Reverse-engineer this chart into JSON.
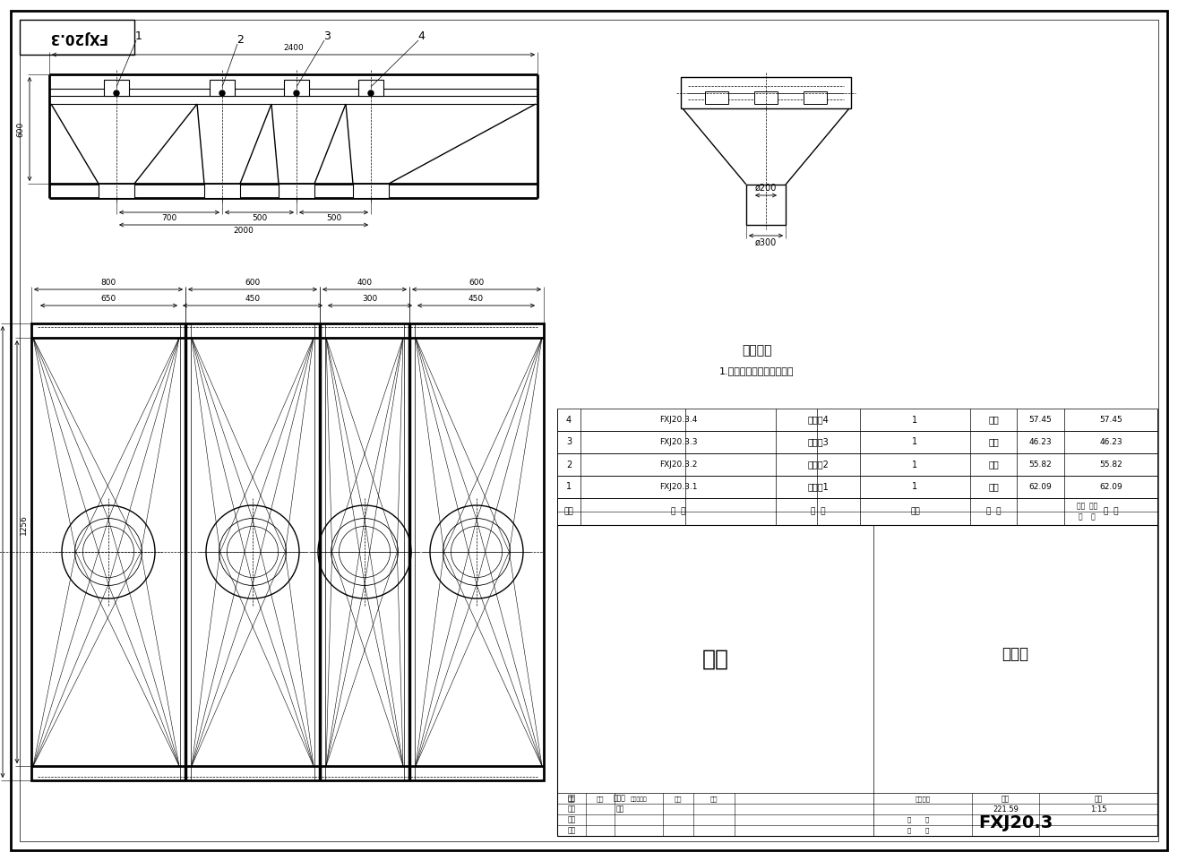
{
  "bg": "#ffffff",
  "title_box": "FXJ20.3",
  "tech_title": "技术要求",
  "tech_note": "1.出料口连接处用软连接。",
  "bom": [
    {
      "seq": "4",
      "code": "FXJ20.3.4",
      "name": "出料口4",
      "qty": "1",
      "mat": "部件",
      "uw": "57.45",
      "tw": "57.45"
    },
    {
      "seq": "3",
      "code": "FXJ20.3.3",
      "name": "出料口3",
      "qty": "1",
      "mat": "部件",
      "uw": "46.23",
      "tw": "46.23"
    },
    {
      "seq": "2",
      "code": "FXJ20.3.2",
      "name": "出料口2",
      "qty": "1",
      "mat": "部件",
      "uw": "55.82",
      "tw": "55.82"
    },
    {
      "seq": "1",
      "code": "FXJ20.3.1",
      "name": "出料口1",
      "qty": "1",
      "mat": "部件",
      "uw": "62.09",
      "tw": "62.09"
    }
  ],
  "tb_part": "部件",
  "tb_name": "出料口",
  "tb_drwno": "FXJ20.3",
  "weight": "221.59",
  "scale": "1:15",
  "d200": "ø200",
  "d300": "ø300"
}
